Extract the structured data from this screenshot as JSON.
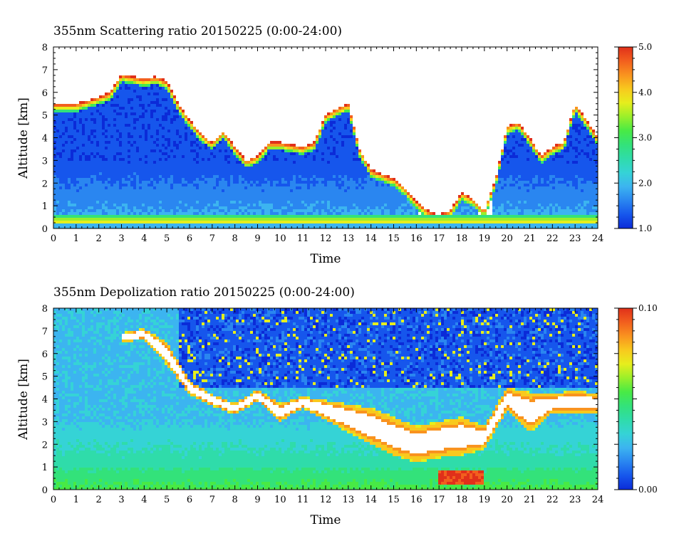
{
  "chart_data": [
    {
      "type": "heatmap",
      "title": "355nm Scattering ratio  20150225 (0:00-24:00)",
      "xlabel": "Time",
      "ylabel": "Altitude [km]",
      "xlim": [
        0,
        24
      ],
      "ylim": [
        0,
        8
      ],
      "x_ticks": [
        "0",
        "1",
        "2",
        "3",
        "4",
        "5",
        "6",
        "7",
        "8",
        "9",
        "10",
        "11",
        "12",
        "13",
        "14",
        "15",
        "16",
        "17",
        "18",
        "19",
        "20",
        "21",
        "22",
        "23",
        "24"
      ],
      "y_ticks": [
        "0",
        "1",
        "2",
        "3",
        "4",
        "5",
        "6",
        "7",
        "8"
      ],
      "colorbar": {
        "min": 1.0,
        "max": 5.0,
        "tick_labels": [
          "1.0",
          "2.0",
          "3.0",
          "4.0",
          "5.0"
        ],
        "tick_values": [
          1,
          2,
          3,
          4,
          5
        ]
      },
      "cloud_top_km": [
        [
          0,
          5.5
        ],
        [
          1,
          5.5
        ],
        [
          2,
          5.8
        ],
        [
          2.5,
          6.0
        ],
        [
          3,
          6.8
        ],
        [
          3.5,
          6.7
        ],
        [
          4,
          6.6
        ],
        [
          4.5,
          6.7
        ],
        [
          5,
          6.5
        ],
        [
          5.5,
          5.5
        ],
        [
          6,
          4.8
        ],
        [
          6.5,
          4.2
        ],
        [
          7,
          3.8
        ],
        [
          7.5,
          4.3
        ],
        [
          8,
          3.6
        ],
        [
          8.5,
          3.0
        ],
        [
          9,
          3.2
        ],
        [
          9.5,
          3.8
        ],
        [
          10,
          3.8
        ],
        [
          10.5,
          3.7
        ],
        [
          11,
          3.6
        ],
        [
          11.5,
          3.8
        ],
        [
          12,
          5.0
        ],
        [
          12.5,
          5.3
        ],
        [
          13,
          5.5
        ],
        [
          13.5,
          3.5
        ],
        [
          14,
          2.6
        ],
        [
          14.5,
          2.4
        ],
        [
          15,
          2.2
        ],
        [
          15.5,
          1.8
        ],
        [
          16,
          1.2
        ],
        [
          16.5,
          0.8
        ],
        [
          17,
          0.6
        ],
        [
          17.5,
          0.8
        ],
        [
          18,
          1.6
        ],
        [
          18.5,
          1.3
        ],
        [
          19,
          0.8
        ],
        [
          19.5,
          2.2
        ],
        [
          20,
          4.5
        ],
        [
          20.5,
          4.7
        ],
        [
          21,
          4.0
        ],
        [
          21.5,
          3.2
        ],
        [
          22,
          3.6
        ],
        [
          22.5,
          3.8
        ],
        [
          23,
          5.5
        ],
        [
          23.5,
          4.8
        ],
        [
          24,
          4.0
        ]
      ]
    },
    {
      "type": "heatmap",
      "title": "355nm Depolization ratio  20150225 (0:00-24:00)",
      "xlabel": "Time",
      "ylabel": "Altitude [km]",
      "xlim": [
        0,
        24
      ],
      "ylim": [
        0,
        8
      ],
      "x_ticks": [
        "0",
        "1",
        "2",
        "3",
        "4",
        "5",
        "6",
        "7",
        "8",
        "9",
        "10",
        "11",
        "12",
        "13",
        "14",
        "15",
        "16",
        "17",
        "18",
        "19",
        "20",
        "21",
        "22",
        "23",
        "24"
      ],
      "y_ticks": [
        "0",
        "1",
        "2",
        "3",
        "4",
        "5",
        "6",
        "7",
        "8"
      ],
      "colorbar": {
        "min": 0.0,
        "max": 0.1,
        "tick_labels": [
          "0.00",
          "0.10"
        ],
        "tick_values": [
          0,
          0.1
        ]
      },
      "cloud_layer_km": [
        [
          3,
          6.5,
          6.9
        ],
        [
          4,
          6.6,
          7.1
        ],
        [
          5,
          5.5,
          6.5
        ],
        [
          6,
          4.2,
          4.8
        ],
        [
          7,
          3.7,
          4.2
        ],
        [
          8,
          3.3,
          3.8
        ],
        [
          9,
          3.9,
          4.4
        ],
        [
          10,
          3.0,
          3.8
        ],
        [
          11,
          3.6,
          4.1
        ],
        [
          14,
          2.0,
          3.6
        ],
        [
          15,
          1.5,
          3.2
        ],
        [
          16,
          1.2,
          2.8
        ],
        [
          17,
          1.4,
          3.0
        ],
        [
          18,
          1.5,
          3.2
        ],
        [
          19,
          1.8,
          2.8
        ],
        [
          20,
          3.5,
          4.5
        ],
        [
          21,
          2.5,
          4.3
        ],
        [
          22,
          3.4,
          4.2
        ],
        [
          23,
          3.3,
          4.4
        ],
        [
          24,
          3.4,
          4.2
        ]
      ]
    }
  ],
  "colors": {
    "scale": [
      "#0b2bd8",
      "#1656ec",
      "#2a86f0",
      "#3cb4f0",
      "#35d3d6",
      "#2fdcaa",
      "#33e27a",
      "#48ea45",
      "#9aef2a",
      "#e6ee1d",
      "#f8c91e",
      "#f9931f",
      "#f25f1e",
      "#e0301a"
    ]
  }
}
